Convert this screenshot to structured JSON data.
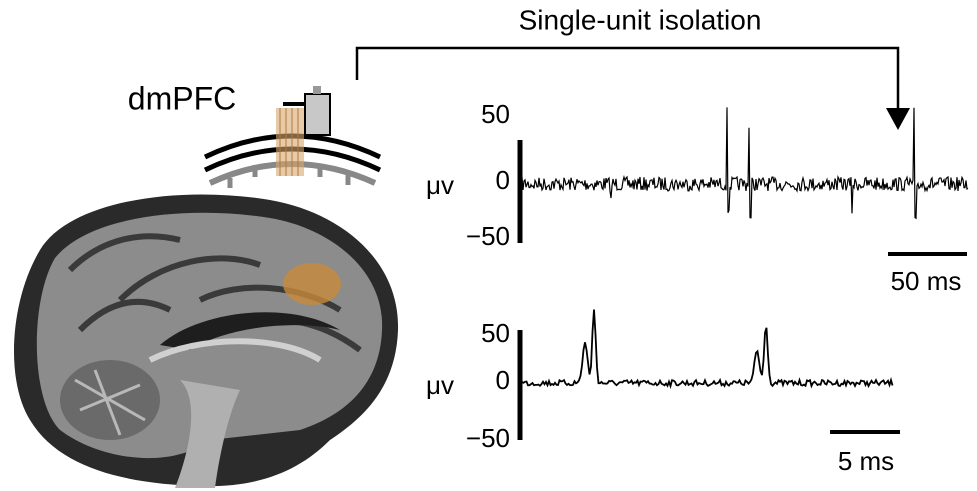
{
  "title": "Single-unit isolation",
  "region_label": "dmPFC",
  "panels": [
    {
      "unit_label": "μv",
      "ticks": [
        "50",
        "0",
        "−50"
      ],
      "scale_bar": "50 ms"
    },
    {
      "unit_label": "μv",
      "ticks": [
        "50",
        "0",
        "−50"
      ],
      "scale_bar": "5 ms"
    }
  ]
}
